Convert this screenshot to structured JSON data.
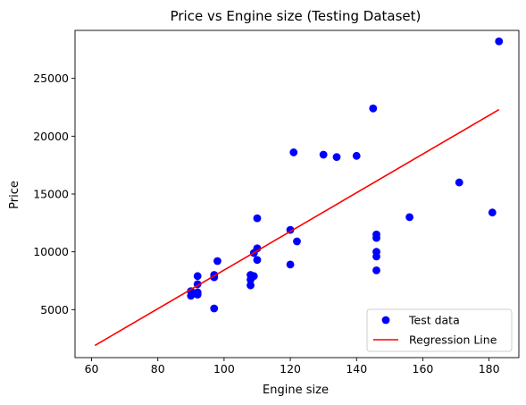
{
  "chart_data": {
    "type": "scatter",
    "title": "Price vs Engine size (Testing Dataset)",
    "xlabel": "Engine size",
    "ylabel": "Price",
    "xlim": [
      55,
      189
    ],
    "ylim": [
      850,
      29150
    ],
    "xticks": [
      60,
      80,
      100,
      120,
      140,
      160,
      180
    ],
    "yticks": [
      5000,
      10000,
      15000,
      20000,
      25000
    ],
    "grid": false,
    "legend_position": "lower right",
    "series": [
      {
        "name": "Test data",
        "type": "scatter",
        "color": "#0000ff",
        "points": [
          [
            90,
            6600
          ],
          [
            90,
            6200
          ],
          [
            92,
            7900
          ],
          [
            92,
            7200
          ],
          [
            92,
            6500
          ],
          [
            92,
            6300
          ],
          [
            97,
            5100
          ],
          [
            97,
            7800
          ],
          [
            97,
            8000
          ],
          [
            98,
            9200
          ],
          [
            108,
            7100
          ],
          [
            108,
            7600
          ],
          [
            108,
            8000
          ],
          [
            109,
            7900
          ],
          [
            109,
            9900
          ],
          [
            110,
            10300
          ],
          [
            110,
            9300
          ],
          [
            110,
            12900
          ],
          [
            120,
            8900
          ],
          [
            120,
            11900
          ],
          [
            121,
            18600
          ],
          [
            122,
            10900
          ],
          [
            130,
            18400
          ],
          [
            134,
            18200
          ],
          [
            140,
            18300
          ],
          [
            145,
            22400
          ],
          [
            146,
            11500
          ],
          [
            146,
            11200
          ],
          [
            146,
            10000
          ],
          [
            146,
            9600
          ],
          [
            146,
            8400
          ],
          [
            156,
            13000
          ],
          [
            171,
            16000
          ],
          [
            181,
            13400
          ],
          [
            183,
            28200
          ]
        ]
      },
      {
        "name": "Regression Line",
        "type": "line",
        "color": "#ff0000",
        "points": [
          [
            61,
            1900
          ],
          [
            183,
            22300
          ]
        ]
      }
    ]
  }
}
